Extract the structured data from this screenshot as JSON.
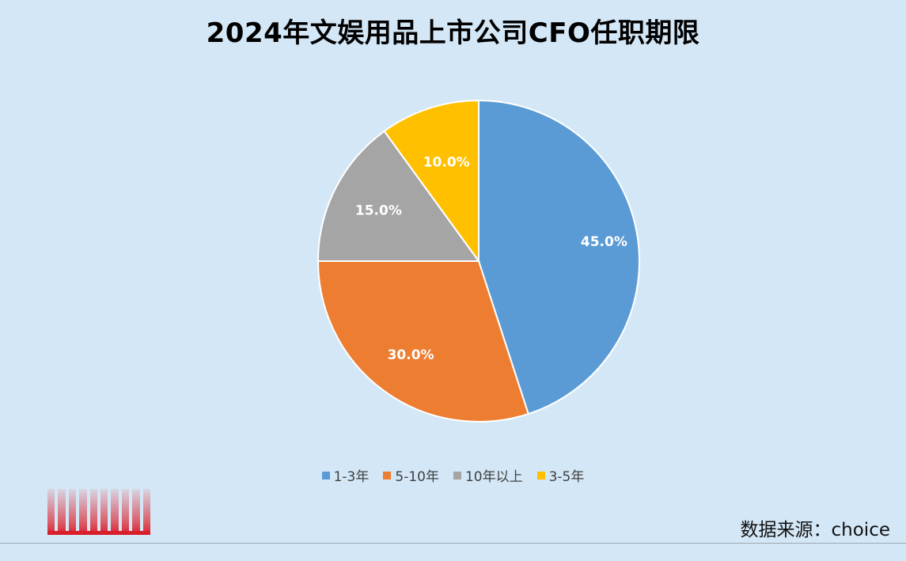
{
  "chart_data": {
    "type": "pie",
    "title": "2024年文娱用品上市公司CFO任职期限",
    "categories": [
      "1-3年",
      "5-10年",
      "10年以上",
      "3-5年"
    ],
    "values": [
      45.0,
      30.0,
      15.0,
      10.0
    ],
    "value_labels": [
      "45.0%",
      "30.0%",
      "15.0%",
      "10.0%"
    ],
    "colors": [
      "#5b9bd5",
      "#ed7d31",
      "#a5a5a5",
      "#ffc000"
    ],
    "start": "12 o'clock",
    "direction": "clockwise",
    "legend_position": "bottom"
  },
  "footer": {
    "source": "数据来源：choice"
  }
}
